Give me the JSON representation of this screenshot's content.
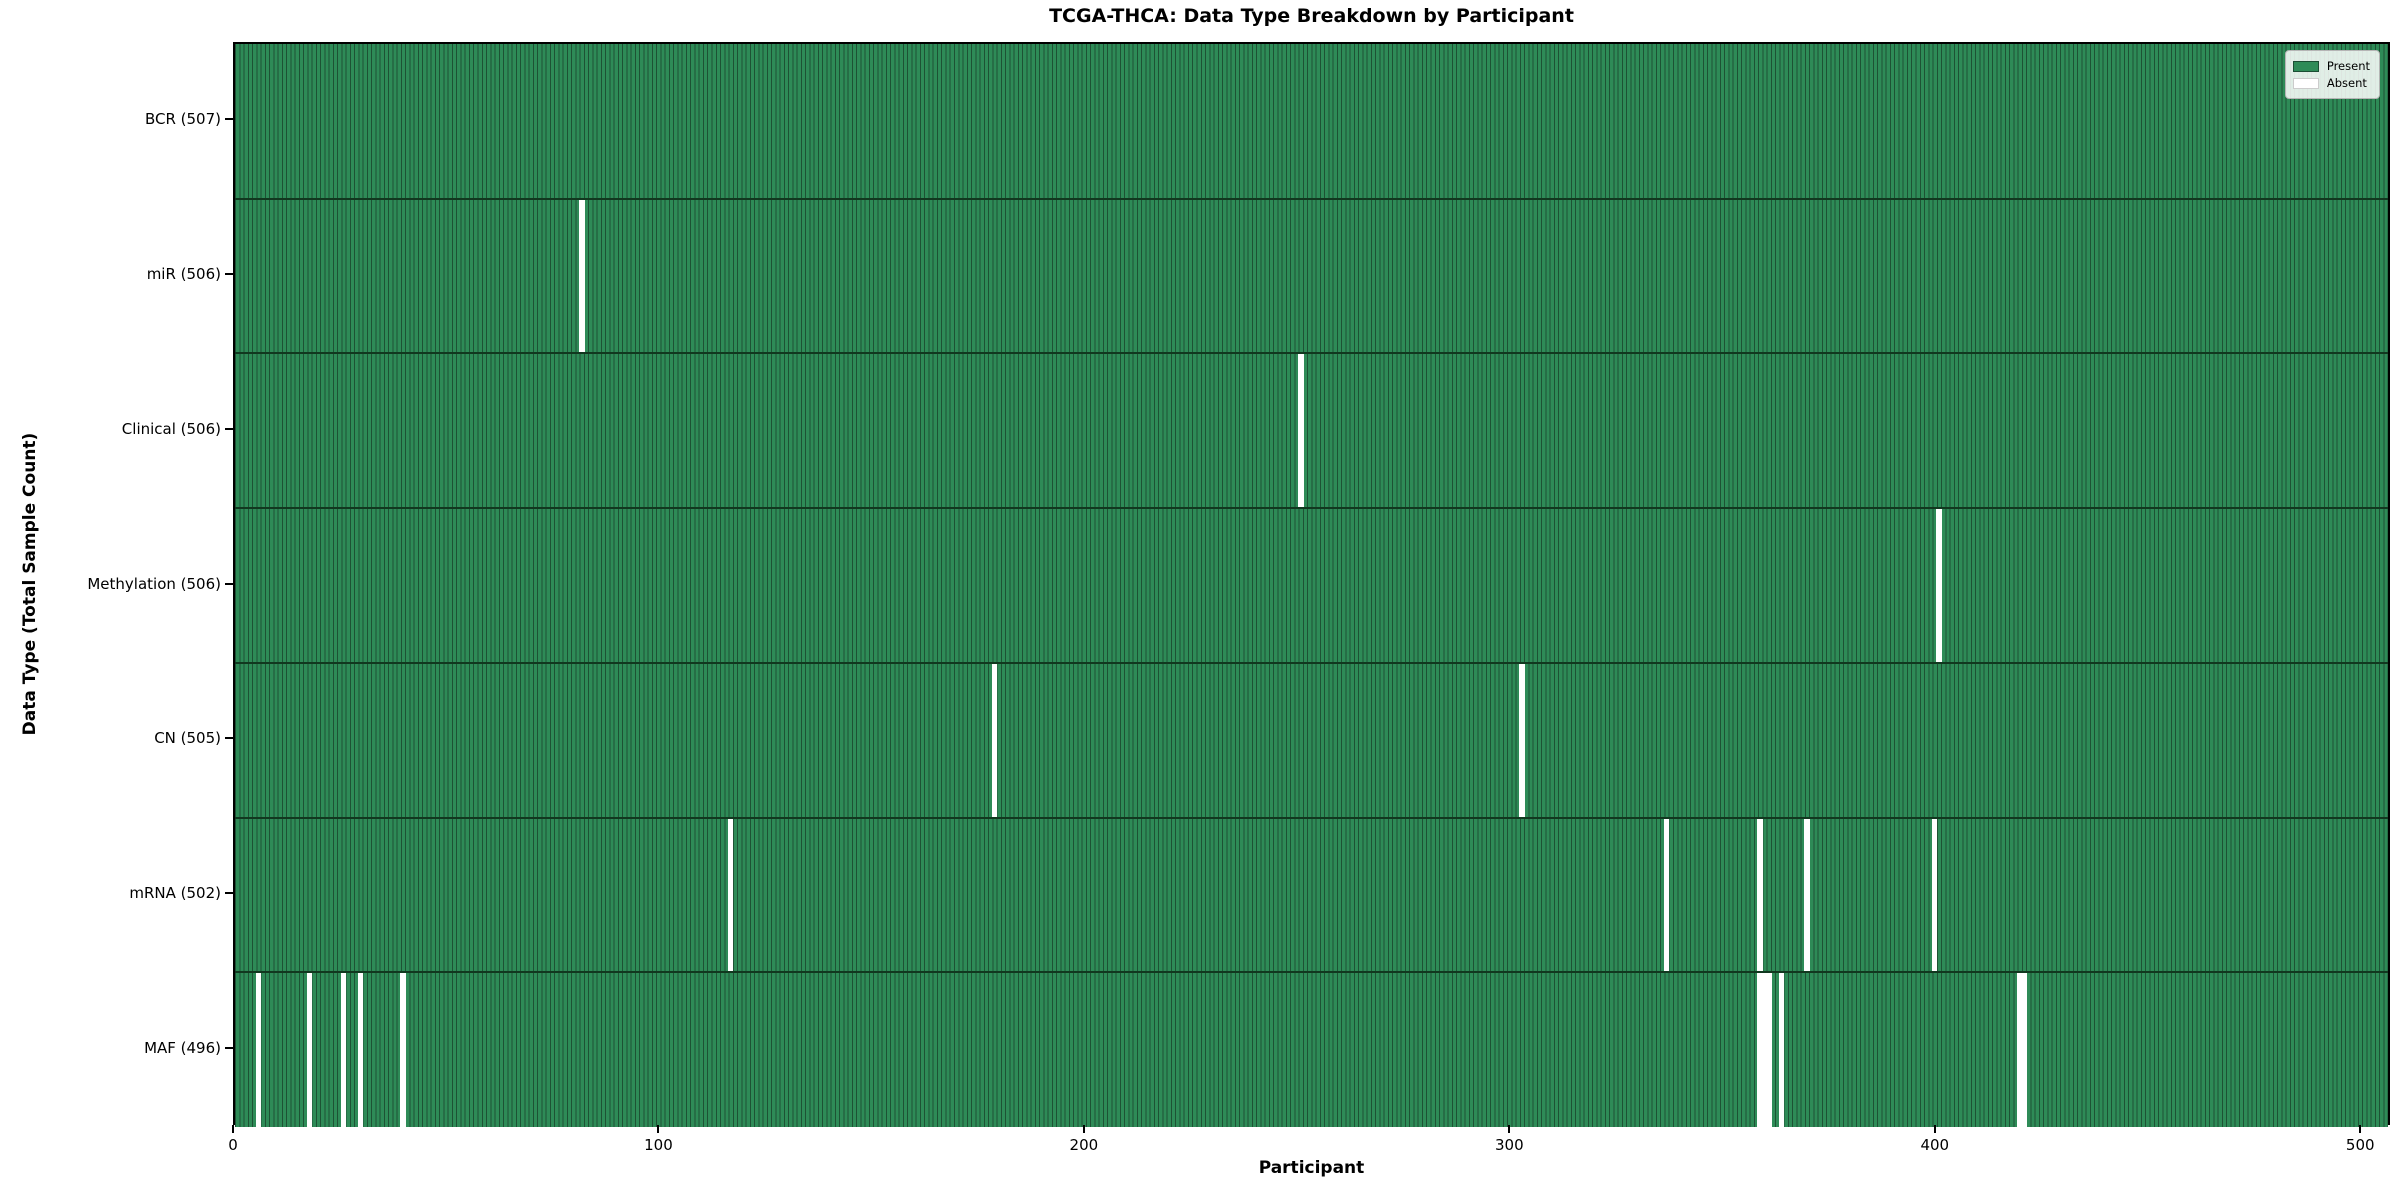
{
  "figure": {
    "background": "#ffffff"
  },
  "chart_data": {
    "type": "heatmap",
    "subtype": "presence-absence-matrix",
    "title": "TCGA-THCA: Data Type Breakdown by Participant",
    "xlabel": "Participant",
    "ylabel": "Data Type (Total Sample Count)",
    "x_range": [
      0,
      507
    ],
    "x_ticks": [
      0,
      100,
      200,
      300,
      400,
      500
    ],
    "total_participants": 507,
    "grid": false,
    "rows": [
      {
        "label": "BCR (507)",
        "data_type": "BCR",
        "present_count": 507,
        "absent_participants": []
      },
      {
        "label": "miR (506)",
        "data_type": "miR",
        "present_count": 506,
        "absent_participants": [
          81
        ]
      },
      {
        "label": "Clinical (506)",
        "data_type": "Clinical",
        "present_count": 506,
        "absent_participants": [
          250
        ]
      },
      {
        "label": "Methylation (506)",
        "data_type": "Methylation",
        "present_count": 506,
        "absent_participants": [
          400
        ]
      },
      {
        "label": "CN (505)",
        "data_type": "CN",
        "present_count": 505,
        "absent_participants": [
          178,
          302
        ]
      },
      {
        "label": "mRNA (502)",
        "data_type": "mRNA",
        "present_count": 502,
        "absent_participants": [
          116,
          336,
          358,
          369,
          399
        ]
      },
      {
        "label": "MAF (496)",
        "data_type": "MAF",
        "present_count": 496,
        "absent_participants": [
          5,
          17,
          25,
          29,
          39,
          358,
          359,
          360,
          363,
          419,
          420
        ]
      }
    ],
    "legend": {
      "position": "upper right",
      "entries": [
        {
          "label": "Present",
          "color": "#2e8b57",
          "edge": "#1b4d33"
        },
        {
          "label": "Absent",
          "color": "#ffffff",
          "edge": "#cccccc"
        }
      ]
    },
    "colors": {
      "present_fill": "#2e8b57",
      "bar_edge": "#1d5234",
      "absent_fill": "#ffffff",
      "row_separator": "#11381f",
      "spine": "#000000",
      "text": "#000000"
    }
  }
}
